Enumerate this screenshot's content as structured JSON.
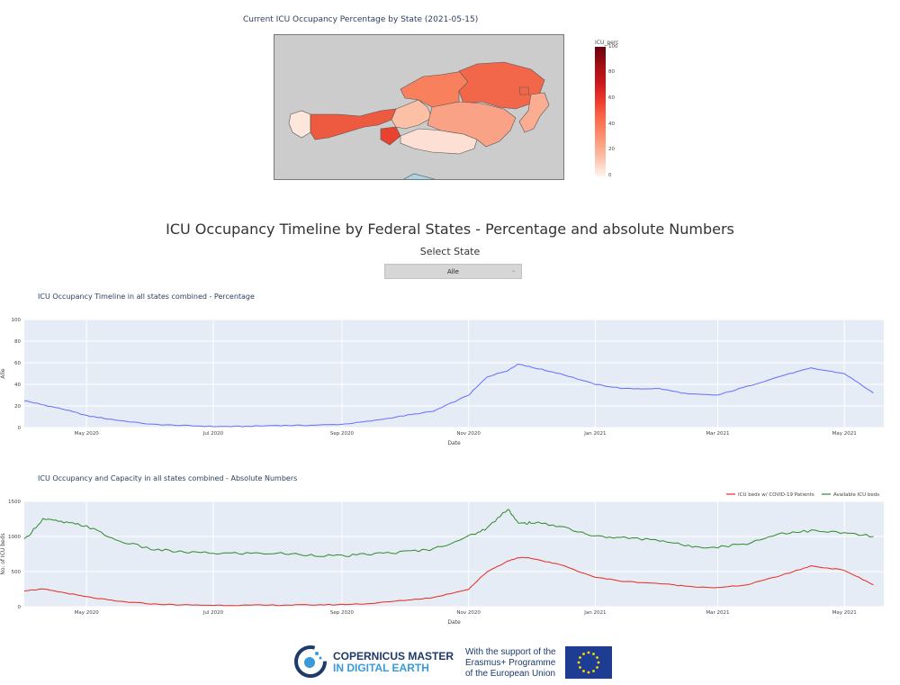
{
  "map": {
    "title": "Current ICU Occupancy Percentage by State (2021-05-15)",
    "colorbar_title": "ICU_perc",
    "colorbar_ticks": [
      "100",
      "80",
      "60",
      "40",
      "20",
      "0"
    ]
  },
  "header": {
    "title": "ICU Occupancy Timeline by Federal States - Percentage and absolute Numbers",
    "select_label": "Select State",
    "select_value": "Alle"
  },
  "chart_data": [
    {
      "type": "line",
      "title": "ICU Occupancy Timeline in all states combined - Percentage",
      "xlabel": "Date",
      "ylabel": "Alle",
      "ylim": [
        0,
        100
      ],
      "y_ticks": [
        "100",
        "80",
        "60",
        "40",
        "20",
        "0"
      ],
      "x_ticks": [
        "May 2020",
        "Jul 2020",
        "Sep 2020",
        "Nov 2020",
        "Jan 2021",
        "Mar 2021",
        "May 2021"
      ],
      "series": [
        {
          "color": "#636efa",
          "x": [
            "2020-04-01",
            "2020-04-10",
            "2020-04-20",
            "2020-05-01",
            "2020-05-15",
            "2020-06-01",
            "2020-06-15",
            "2020-07-01",
            "2020-07-15",
            "2020-08-01",
            "2020-08-15",
            "2020-09-01",
            "2020-09-15",
            "2020-10-01",
            "2020-10-15",
            "2020-11-01",
            "2020-11-10",
            "2020-11-20",
            "2020-11-25",
            "2020-12-01",
            "2020-12-15",
            "2021-01-01",
            "2021-01-15",
            "2021-02-01",
            "2021-02-15",
            "2021-03-01",
            "2021-03-15",
            "2021-04-01",
            "2021-04-15",
            "2021-05-01",
            "2021-05-15"
          ],
          "y": [
            25,
            21,
            17,
            11,
            7,
            3,
            2,
            1,
            1,
            2,
            2,
            3,
            6,
            11,
            15,
            30,
            47,
            53,
            59,
            56,
            50,
            40,
            36,
            36,
            31,
            30,
            38,
            48,
            55,
            50,
            32
          ]
        }
      ]
    },
    {
      "type": "line",
      "title": "ICU Occupancy and Capacity in all states combined - Absolute Numbers",
      "xlabel": "Date",
      "ylabel": "No. of ICU beds",
      "ylim": [
        0,
        1500
      ],
      "y_ticks": [
        "1500",
        "1000",
        "500",
        "0"
      ],
      "x_ticks": [
        "May 2020",
        "Jul 2020",
        "Sep 2020",
        "Nov 2020",
        "Jan 2021",
        "Mar 2021",
        "May 2021"
      ],
      "series": [
        {
          "name": "ICU beds w/ COVID-19 Patients",
          "color": "#e8291c",
          "x": [
            "2020-04-01",
            "2020-04-10",
            "2020-04-20",
            "2020-05-01",
            "2020-05-15",
            "2020-06-01",
            "2020-06-15",
            "2020-07-01",
            "2020-07-15",
            "2020-08-01",
            "2020-08-15",
            "2020-09-01",
            "2020-09-15",
            "2020-10-01",
            "2020-10-15",
            "2020-11-01",
            "2020-11-10",
            "2020-11-20",
            "2020-11-25",
            "2020-12-01",
            "2020-12-15",
            "2021-01-01",
            "2021-01-15",
            "2021-02-01",
            "2021-02-15",
            "2021-03-01",
            "2021-03-15",
            "2021-04-01",
            "2021-04-15",
            "2021-05-01",
            "2021-05-15"
          ],
          "y": [
            230,
            250,
            200,
            140,
            80,
            40,
            25,
            20,
            20,
            22,
            25,
            30,
            45,
            90,
            130,
            250,
            500,
            650,
            700,
            690,
            600,
            420,
            360,
            330,
            290,
            270,
            310,
            450,
            580,
            520,
            310
          ]
        },
        {
          "name": "Available ICU beds",
          "color": "#2f8a2a",
          "x": [
            "2020-04-01",
            "2020-04-10",
            "2020-04-20",
            "2020-05-01",
            "2020-05-15",
            "2020-06-01",
            "2020-06-15",
            "2020-07-01",
            "2020-07-15",
            "2020-08-01",
            "2020-08-15",
            "2020-09-01",
            "2020-09-15",
            "2020-10-01",
            "2020-10-15",
            "2020-11-01",
            "2020-11-10",
            "2020-11-20",
            "2020-11-25",
            "2020-12-01",
            "2020-12-15",
            "2021-01-01",
            "2021-01-15",
            "2021-02-01",
            "2021-02-15",
            "2021-03-01",
            "2021-03-15",
            "2021-04-01",
            "2021-04-15",
            "2021-05-01",
            "2021-05-15"
          ],
          "y": [
            950,
            1250,
            1200,
            1150,
            950,
            820,
            780,
            760,
            760,
            760,
            740,
            720,
            750,
            780,
            820,
            1000,
            1120,
            1400,
            1180,
            1200,
            1150,
            1000,
            980,
            950,
            860,
            850,
            900,
            1050,
            1080,
            1050,
            1000
          ]
        }
      ]
    }
  ],
  "footer": {
    "copernicus_line1": "COPERNICUS MASTER",
    "copernicus_line2": "IN DIGITAL EARTH",
    "eu_line1": "With the support of the",
    "eu_line2": "Erasmus+ Programme",
    "eu_line3": "of the European Union"
  }
}
